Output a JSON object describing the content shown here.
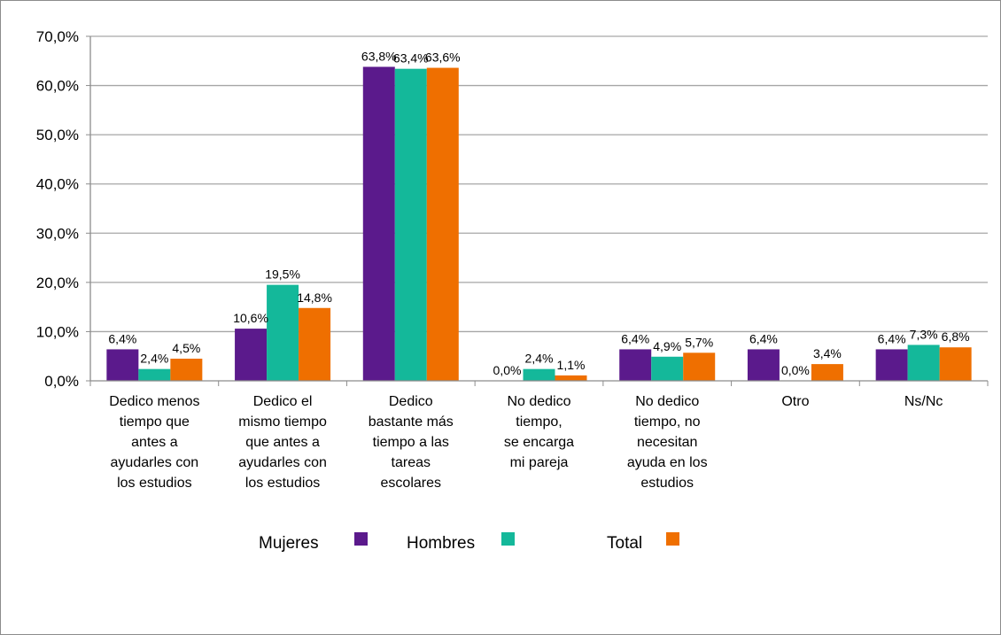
{
  "chart_data": {
    "type": "bar",
    "categories": [
      [
        "Dedico menos",
        "tiempo que",
        "antes a",
        "ayudarles con",
        "los estudios"
      ],
      [
        "Dedico el",
        "mismo tiempo",
        "que antes a",
        "ayudarles con",
        "los estudios"
      ],
      [
        "Dedico",
        "bastante más",
        "tiempo a las",
        "tareas",
        "escolares"
      ],
      [
        "No dedico",
        "tiempo,",
        "se encarga",
        "mi pareja"
      ],
      [
        "No dedico",
        "tiempo, no",
        "necesitan",
        "ayuda en los",
        "estudios"
      ],
      [
        "Otro"
      ],
      [
        "Ns/Nc"
      ]
    ],
    "series": [
      {
        "name": "Mujeres",
        "color": "#5b1a8c",
        "values": [
          6.4,
          10.6,
          63.8,
          0.0,
          6.4,
          6.4,
          6.4
        ],
        "labels": [
          "6,4%",
          "10,6%",
          "63,8%",
          "0,0%",
          "6,4%",
          "6,4%",
          "6,4%"
        ]
      },
      {
        "name": "Hombres",
        "color": "#14b89a",
        "values": [
          2.4,
          19.5,
          63.4,
          2.4,
          4.9,
          0.0,
          7.3
        ],
        "labels": [
          "2,4%",
          "19,5%",
          "63,4%",
          "2,4%",
          "4,9%",
          "0,0%",
          "7,3%"
        ]
      },
      {
        "name": "Total",
        "color": "#ef6f00",
        "values": [
          4.5,
          14.8,
          63.6,
          1.1,
          5.7,
          3.4,
          6.8
        ],
        "labels": [
          "4,5%",
          "14,8%",
          "63,6%",
          "1,1%",
          "5,7%",
          "3,4%",
          "6,8%"
        ]
      }
    ],
    "y_ticks": [
      "0,0%",
      "10,0%",
      "20,0%",
      "30,0%",
      "40,0%",
      "50,0%",
      "60,0%",
      "70,0%"
    ],
    "ylim": [
      0,
      70
    ],
    "grid": true,
    "legend_position": "bottom"
  }
}
